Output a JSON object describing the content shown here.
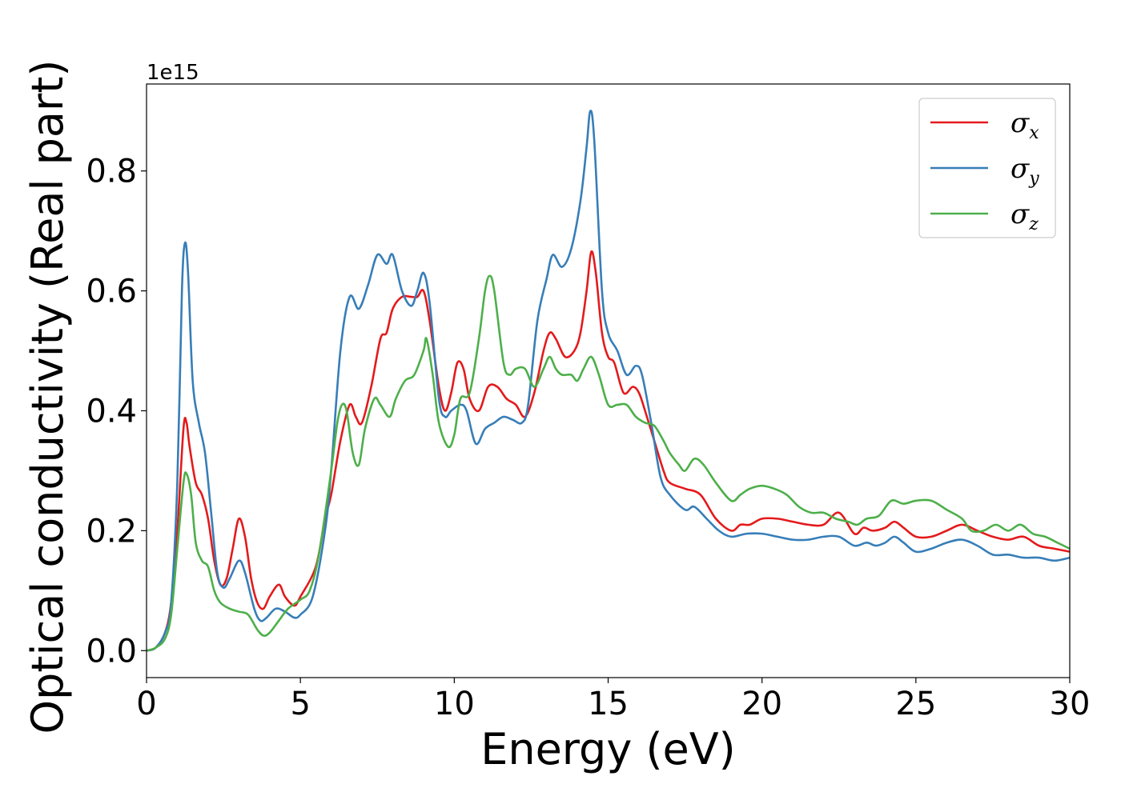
{
  "chart_data": {
    "type": "line",
    "xlabel": "Energy (eV)",
    "ylabel": "Optical conductivity (Real part)",
    "y_offset_label": "1e15",
    "xlim": [
      0,
      30
    ],
    "ylim": [
      -0.045,
      0.945
    ],
    "x_ticks": [
      0,
      5,
      10,
      15,
      20,
      25,
      30
    ],
    "y_ticks": [
      0.0,
      0.2,
      0.4,
      0.6,
      0.8
    ],
    "x_tick_labels": [
      "0",
      "5",
      "10",
      "15",
      "20",
      "25",
      "30"
    ],
    "y_tick_labels": [
      "0.0",
      "0.2",
      "0.4",
      "0.6",
      "0.8"
    ],
    "grid": false,
    "legend_position": "top-right",
    "series": [
      {
        "name": "σx",
        "symbol": "σ",
        "subscript": "x",
        "color": "#e41a1c",
        "points": [
          [
            0,
            0
          ],
          [
            0.3,
            0.005
          ],
          [
            0.6,
            0.03
          ],
          [
            0.8,
            0.08
          ],
          [
            1.0,
            0.2
          ],
          [
            1.2,
            0.37
          ],
          [
            1.3,
            0.38
          ],
          [
            1.4,
            0.34
          ],
          [
            1.6,
            0.28
          ],
          [
            1.8,
            0.26
          ],
          [
            2.0,
            0.22
          ],
          [
            2.2,
            0.15
          ],
          [
            2.4,
            0.11
          ],
          [
            2.6,
            0.12
          ],
          [
            2.8,
            0.17
          ],
          [
            3.0,
            0.22
          ],
          [
            3.2,
            0.19
          ],
          [
            3.4,
            0.12
          ],
          [
            3.6,
            0.08
          ],
          [
            3.8,
            0.07
          ],
          [
            4.0,
            0.09
          ],
          [
            4.3,
            0.11
          ],
          [
            4.5,
            0.09
          ],
          [
            4.8,
            0.075
          ],
          [
            5.0,
            0.09
          ],
          [
            5.5,
            0.14
          ],
          [
            5.8,
            0.22
          ],
          [
            6.0,
            0.26
          ],
          [
            6.3,
            0.35
          ],
          [
            6.6,
            0.41
          ],
          [
            6.8,
            0.39
          ],
          [
            7.0,
            0.38
          ],
          [
            7.3,
            0.44
          ],
          [
            7.6,
            0.52
          ],
          [
            7.8,
            0.53
          ],
          [
            8.0,
            0.57
          ],
          [
            8.3,
            0.59
          ],
          [
            8.6,
            0.59
          ],
          [
            8.8,
            0.59
          ],
          [
            9.0,
            0.6
          ],
          [
            9.2,
            0.55
          ],
          [
            9.5,
            0.44
          ],
          [
            9.7,
            0.4
          ],
          [
            9.9,
            0.43
          ],
          [
            10.1,
            0.48
          ],
          [
            10.3,
            0.47
          ],
          [
            10.5,
            0.42
          ],
          [
            10.8,
            0.4
          ],
          [
            11.1,
            0.44
          ],
          [
            11.4,
            0.44
          ],
          [
            11.7,
            0.42
          ],
          [
            12.0,
            0.41
          ],
          [
            12.3,
            0.39
          ],
          [
            12.6,
            0.43
          ],
          [
            12.9,
            0.5
          ],
          [
            13.1,
            0.53
          ],
          [
            13.3,
            0.52
          ],
          [
            13.6,
            0.49
          ],
          [
            13.9,
            0.5
          ],
          [
            14.1,
            0.53
          ],
          [
            14.3,
            0.6
          ],
          [
            14.45,
            0.665
          ],
          [
            14.6,
            0.63
          ],
          [
            14.8,
            0.53
          ],
          [
            15.0,
            0.49
          ],
          [
            15.2,
            0.48
          ],
          [
            15.5,
            0.43
          ],
          [
            15.8,
            0.44
          ],
          [
            16.0,
            0.43
          ],
          [
            16.2,
            0.4
          ],
          [
            16.5,
            0.35
          ],
          [
            16.8,
            0.3
          ],
          [
            17.0,
            0.28
          ],
          [
            17.5,
            0.27
          ],
          [
            18.0,
            0.26
          ],
          [
            18.5,
            0.22
          ],
          [
            19.0,
            0.2
          ],
          [
            19.3,
            0.21
          ],
          [
            19.6,
            0.21
          ],
          [
            20.0,
            0.22
          ],
          [
            20.5,
            0.22
          ],
          [
            21.0,
            0.215
          ],
          [
            21.5,
            0.21
          ],
          [
            22.0,
            0.21
          ],
          [
            22.5,
            0.23
          ],
          [
            23.0,
            0.195
          ],
          [
            23.3,
            0.205
          ],
          [
            23.6,
            0.2
          ],
          [
            24.0,
            0.205
          ],
          [
            24.3,
            0.215
          ],
          [
            24.6,
            0.205
          ],
          [
            25.0,
            0.19
          ],
          [
            25.5,
            0.19
          ],
          [
            26.0,
            0.2
          ],
          [
            26.5,
            0.21
          ],
          [
            27.0,
            0.2
          ],
          [
            27.5,
            0.19
          ],
          [
            28.0,
            0.185
          ],
          [
            28.5,
            0.19
          ],
          [
            29.0,
            0.175
          ],
          [
            29.5,
            0.17
          ],
          [
            30.0,
            0.165
          ]
        ]
      },
      {
        "name": "σy",
        "symbol": "σ",
        "subscript": "y",
        "color": "#377eb8",
        "points": [
          [
            0,
            0
          ],
          [
            0.3,
            0.005
          ],
          [
            0.6,
            0.03
          ],
          [
            0.8,
            0.08
          ],
          [
            1.0,
            0.28
          ],
          [
            1.15,
            0.6
          ],
          [
            1.25,
            0.68
          ],
          [
            1.35,
            0.63
          ],
          [
            1.5,
            0.45
          ],
          [
            1.7,
            0.38
          ],
          [
            1.9,
            0.33
          ],
          [
            2.1,
            0.23
          ],
          [
            2.3,
            0.13
          ],
          [
            2.5,
            0.105
          ],
          [
            2.7,
            0.12
          ],
          [
            3.0,
            0.15
          ],
          [
            3.2,
            0.13
          ],
          [
            3.5,
            0.07
          ],
          [
            3.7,
            0.05
          ],
          [
            3.9,
            0.055
          ],
          [
            4.2,
            0.07
          ],
          [
            4.5,
            0.065
          ],
          [
            4.8,
            0.055
          ],
          [
            5.0,
            0.06
          ],
          [
            5.4,
            0.09
          ],
          [
            5.8,
            0.2
          ],
          [
            6.0,
            0.3
          ],
          [
            6.3,
            0.5
          ],
          [
            6.6,
            0.59
          ],
          [
            6.9,
            0.57
          ],
          [
            7.2,
            0.61
          ],
          [
            7.5,
            0.66
          ],
          [
            7.8,
            0.645
          ],
          [
            8.0,
            0.66
          ],
          [
            8.3,
            0.6
          ],
          [
            8.6,
            0.575
          ],
          [
            8.8,
            0.6
          ],
          [
            9.0,
            0.63
          ],
          [
            9.2,
            0.58
          ],
          [
            9.5,
            0.42
          ],
          [
            9.7,
            0.39
          ],
          [
            9.9,
            0.4
          ],
          [
            10.2,
            0.41
          ],
          [
            10.4,
            0.4
          ],
          [
            10.7,
            0.345
          ],
          [
            11.0,
            0.37
          ],
          [
            11.3,
            0.38
          ],
          [
            11.6,
            0.39
          ],
          [
            11.9,
            0.385
          ],
          [
            12.2,
            0.38
          ],
          [
            12.4,
            0.41
          ],
          [
            12.7,
            0.55
          ],
          [
            13.0,
            0.62
          ],
          [
            13.2,
            0.66
          ],
          [
            13.5,
            0.64
          ],
          [
            13.8,
            0.67
          ],
          [
            14.1,
            0.75
          ],
          [
            14.3,
            0.84
          ],
          [
            14.42,
            0.9
          ],
          [
            14.55,
            0.85
          ],
          [
            14.8,
            0.6
          ],
          [
            15.0,
            0.53
          ],
          [
            15.3,
            0.5
          ],
          [
            15.6,
            0.46
          ],
          [
            15.9,
            0.475
          ],
          [
            16.1,
            0.46
          ],
          [
            16.4,
            0.38
          ],
          [
            16.7,
            0.29
          ],
          [
            17.0,
            0.26
          ],
          [
            17.5,
            0.235
          ],
          [
            17.8,
            0.24
          ],
          [
            18.2,
            0.22
          ],
          [
            18.6,
            0.2
          ],
          [
            19.0,
            0.19
          ],
          [
            19.5,
            0.195
          ],
          [
            20.0,
            0.195
          ],
          [
            20.5,
            0.19
          ],
          [
            21.0,
            0.185
          ],
          [
            21.5,
            0.185
          ],
          [
            22.0,
            0.19
          ],
          [
            22.5,
            0.19
          ],
          [
            23.0,
            0.175
          ],
          [
            23.4,
            0.18
          ],
          [
            23.7,
            0.175
          ],
          [
            24.0,
            0.18
          ],
          [
            24.3,
            0.19
          ],
          [
            24.6,
            0.18
          ],
          [
            25.0,
            0.165
          ],
          [
            25.5,
            0.17
          ],
          [
            26.0,
            0.18
          ],
          [
            26.5,
            0.185
          ],
          [
            27.0,
            0.175
          ],
          [
            27.5,
            0.16
          ],
          [
            28.0,
            0.16
          ],
          [
            28.5,
            0.155
          ],
          [
            29.0,
            0.155
          ],
          [
            29.5,
            0.15
          ],
          [
            30.0,
            0.155
          ]
        ]
      },
      {
        "name": "σz",
        "symbol": "σ",
        "subscript": "z",
        "color": "#4daf4a",
        "points": [
          [
            0,
            0
          ],
          [
            0.3,
            0.005
          ],
          [
            0.6,
            0.02
          ],
          [
            0.8,
            0.06
          ],
          [
            1.0,
            0.17
          ],
          [
            1.2,
            0.28
          ],
          [
            1.3,
            0.295
          ],
          [
            1.45,
            0.26
          ],
          [
            1.6,
            0.18
          ],
          [
            1.8,
            0.15
          ],
          [
            2.0,
            0.14
          ],
          [
            2.2,
            0.1
          ],
          [
            2.4,
            0.08
          ],
          [
            2.7,
            0.07
          ],
          [
            3.0,
            0.065
          ],
          [
            3.3,
            0.06
          ],
          [
            3.6,
            0.035
          ],
          [
            3.8,
            0.025
          ],
          [
            4.0,
            0.03
          ],
          [
            4.3,
            0.05
          ],
          [
            4.6,
            0.07
          ],
          [
            5.0,
            0.085
          ],
          [
            5.3,
            0.1
          ],
          [
            5.6,
            0.16
          ],
          [
            6.0,
            0.3
          ],
          [
            6.2,
            0.38
          ],
          [
            6.35,
            0.41
          ],
          [
            6.5,
            0.4
          ],
          [
            6.7,
            0.33
          ],
          [
            6.9,
            0.31
          ],
          [
            7.1,
            0.37
          ],
          [
            7.4,
            0.42
          ],
          [
            7.6,
            0.41
          ],
          [
            7.9,
            0.39
          ],
          [
            8.1,
            0.42
          ],
          [
            8.4,
            0.45
          ],
          [
            8.7,
            0.46
          ],
          [
            9.0,
            0.5
          ],
          [
            9.1,
            0.52
          ],
          [
            9.3,
            0.46
          ],
          [
            9.5,
            0.38
          ],
          [
            9.8,
            0.34
          ],
          [
            10.0,
            0.36
          ],
          [
            10.2,
            0.42
          ],
          [
            10.5,
            0.43
          ],
          [
            10.8,
            0.52
          ],
          [
            11.0,
            0.6
          ],
          [
            11.15,
            0.625
          ],
          [
            11.3,
            0.6
          ],
          [
            11.6,
            0.48
          ],
          [
            11.8,
            0.46
          ],
          [
            12.0,
            0.47
          ],
          [
            12.3,
            0.47
          ],
          [
            12.6,
            0.44
          ],
          [
            12.9,
            0.47
          ],
          [
            13.1,
            0.49
          ],
          [
            13.3,
            0.47
          ],
          [
            13.5,
            0.46
          ],
          [
            13.8,
            0.46
          ],
          [
            14.0,
            0.45
          ],
          [
            14.2,
            0.47
          ],
          [
            14.45,
            0.49
          ],
          [
            14.7,
            0.46
          ],
          [
            15.0,
            0.41
          ],
          [
            15.3,
            0.41
          ],
          [
            15.6,
            0.41
          ],
          [
            15.9,
            0.39
          ],
          [
            16.2,
            0.38
          ],
          [
            16.5,
            0.375
          ],
          [
            16.8,
            0.35
          ],
          [
            17.0,
            0.33
          ],
          [
            17.3,
            0.31
          ],
          [
            17.5,
            0.3
          ],
          [
            17.8,
            0.32
          ],
          [
            18.1,
            0.31
          ],
          [
            18.5,
            0.28
          ],
          [
            19.0,
            0.25
          ],
          [
            19.3,
            0.26
          ],
          [
            19.6,
            0.27
          ],
          [
            20.0,
            0.275
          ],
          [
            20.4,
            0.27
          ],
          [
            20.8,
            0.26
          ],
          [
            21.2,
            0.24
          ],
          [
            21.6,
            0.23
          ],
          [
            22.0,
            0.23
          ],
          [
            22.4,
            0.22
          ],
          [
            22.8,
            0.215
          ],
          [
            23.1,
            0.21
          ],
          [
            23.4,
            0.22
          ],
          [
            23.8,
            0.225
          ],
          [
            24.2,
            0.25
          ],
          [
            24.6,
            0.245
          ],
          [
            25.0,
            0.25
          ],
          [
            25.5,
            0.25
          ],
          [
            26.0,
            0.235
          ],
          [
            26.5,
            0.22
          ],
          [
            26.8,
            0.2
          ],
          [
            27.2,
            0.2
          ],
          [
            27.6,
            0.21
          ],
          [
            28.0,
            0.2
          ],
          [
            28.4,
            0.21
          ],
          [
            28.8,
            0.195
          ],
          [
            29.2,
            0.19
          ],
          [
            29.6,
            0.18
          ],
          [
            30.0,
            0.17
          ]
        ]
      }
    ]
  }
}
